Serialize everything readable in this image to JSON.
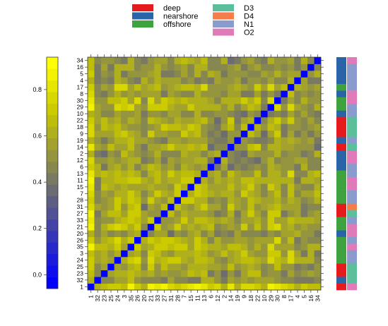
{
  "chart_data": {
    "type": "heatmap",
    "title": "",
    "xlabel": "",
    "ylabel": "",
    "order": [
      "1",
      "32",
      "23",
      "25",
      "24",
      "3",
      "35",
      "26",
      "20",
      "21",
      "33",
      "27",
      "31",
      "28",
      "7",
      "15",
      "11",
      "13",
      "6",
      "12",
      "2",
      "14",
      "19",
      "9",
      "18",
      "22",
      "10",
      "29",
      "30",
      "8",
      "17",
      "4",
      "5",
      "16",
      "34"
    ],
    "groups": {
      "1": [
        "deep",
        "O2"
      ],
      "32": [
        "nearshore",
        "D3"
      ],
      "23": [
        "deep",
        "D3"
      ],
      "25": [
        "deep",
        "D3"
      ],
      "24": [
        "offshore",
        "N1"
      ],
      "3": [
        "offshore",
        "N1"
      ],
      "35": [
        "offshore",
        "O2"
      ],
      "26": [
        "offshore",
        "N1"
      ],
      "20": [
        "nearshore",
        "O2"
      ],
      "21": [
        "offshore",
        "O2"
      ],
      "33": [
        "offshore",
        "N1"
      ],
      "27": [
        "deep",
        "D3"
      ],
      "31": [
        "deep",
        "D4"
      ],
      "28": [
        "offshore",
        "N1"
      ],
      "7": [
        "offshore",
        "N1"
      ],
      "15": [
        "offshore",
        "O2"
      ],
      "11": [
        "offshore",
        "O2"
      ],
      "13": [
        "offshore",
        "N1"
      ],
      "6": [
        "nearshore",
        "N1"
      ],
      "12": [
        "nearshore",
        "O2"
      ],
      "2": [
        "nearshore",
        "O2"
      ],
      "14": [
        "deep",
        "D3"
      ],
      "19": [
        "nearshore",
        "N1"
      ],
      "9": [
        "deep",
        "D3"
      ],
      "18": [
        "deep",
        "D3"
      ],
      "22": [
        "deep",
        "D3"
      ],
      "10": [
        "nearshore",
        "N1"
      ],
      "29": [
        "offshore",
        "N1"
      ],
      "30": [
        "offshore",
        "O2"
      ],
      "8": [
        "nearshore",
        "O2"
      ],
      "17": [
        "offshore",
        "N1"
      ],
      "4": [
        "nearshore",
        "N1"
      ],
      "5": [
        "nearshore",
        "N1"
      ],
      "16": [
        "nearshore",
        "N1"
      ],
      "34": [
        "nearshore",
        "O2"
      ]
    },
    "scale": {
      "min": -0.06,
      "max": 0.94,
      "ticks": [
        0.0,
        0.2,
        0.4,
        0.6,
        0.8
      ],
      "tick_labels": [
        "0.0",
        "0.2",
        "0.4",
        "0.6",
        "0.8"
      ],
      "colors": [
        "#0000ff",
        "#0d0dee",
        "#1b1bdc",
        "#2828cb",
        "#3636b9",
        "#4343a8",
        "#515196",
        "#5e5e85",
        "#6c6c73",
        "#7a7a62",
        "#878750",
        "#95953f",
        "#a2a22d",
        "#b0b01c",
        "#bdbd0a",
        "#cbcb00",
        "#d8d800",
        "#e6e600",
        "#f3f300",
        "#ffff00"
      ]
    },
    "legend": {
      "placement": "top",
      "entries": [
        {
          "label": "deep",
          "color": "#e41a1c"
        },
        {
          "label": "nearshore",
          "color": "#2a64a8"
        },
        {
          "label": "offshore",
          "color": "#3ea33e"
        },
        {
          "label": "D3",
          "color": "#5cbf9b"
        },
        {
          "label": "D4",
          "color": "#f47d4a"
        },
        {
          "label": "N1",
          "color": "#8a9ccd"
        },
        {
          "label": "O2",
          "color": "#e07ab9"
        }
      ]
    }
  }
}
